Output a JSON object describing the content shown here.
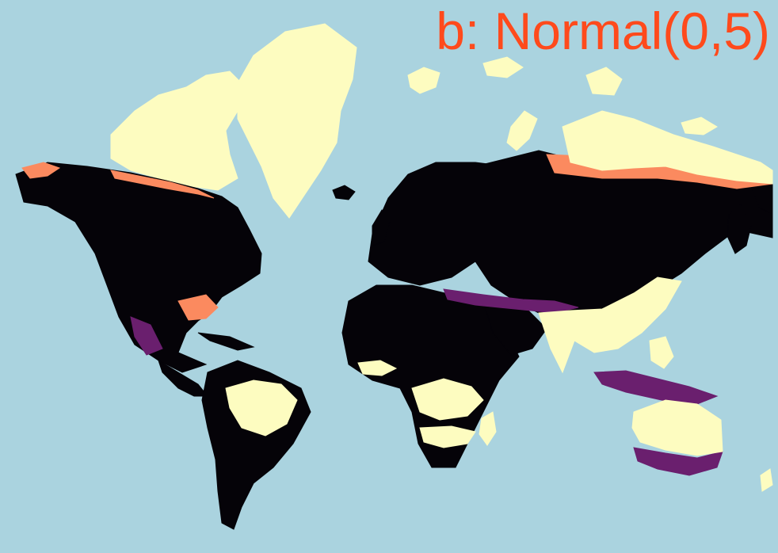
{
  "panel": {
    "title": "b: Normal(0,5)"
  },
  "colors": {
    "ocean": "#aad3df",
    "dark": "#050308",
    "purple": "#6a1f6e",
    "orange": "#fb8a5f",
    "cream": "#fdfcc0",
    "title": "#ff4a1c"
  }
}
